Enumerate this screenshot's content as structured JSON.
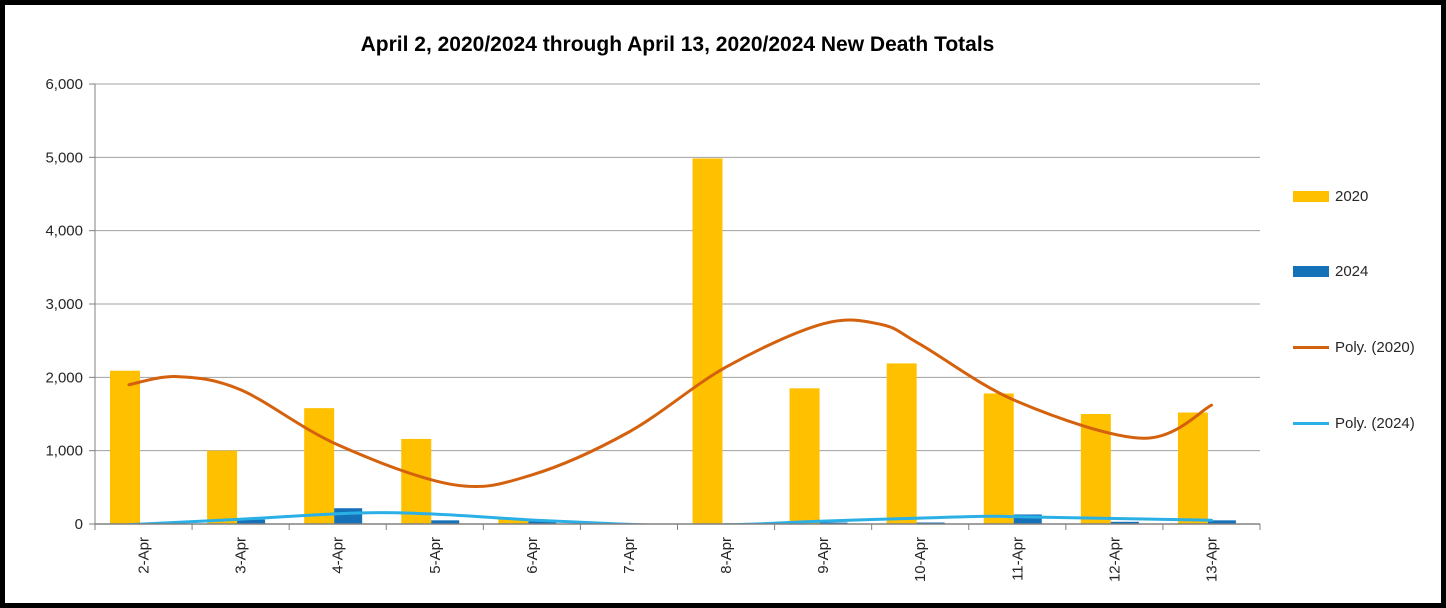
{
  "title": "April 2, 2020/2024 through April 13, 2020/2024 New Death Totals",
  "legend": {
    "items": [
      {
        "label": "2020",
        "type": "bar",
        "color": "#FFC000"
      },
      {
        "label": "2024",
        "type": "bar",
        "color": "#1572B8"
      },
      {
        "label": "Poly. (2020)",
        "type": "line",
        "color": "#D4610D"
      },
      {
        "label": "Poly. (2024)",
        "type": "line",
        "color": "#2BB0E6"
      }
    ]
  },
  "chart_data": {
    "type": "bar",
    "title": "April 2, 2020/2024 through April 13, 2020/2024 New Death Totals",
    "categories": [
      "2-Apr",
      "3-Apr",
      "4-Apr",
      "5-Apr",
      "6-Apr",
      "7-Apr",
      "8-Apr",
      "9-Apr",
      "10-Apr",
      "11-Apr",
      "12-Apr",
      "13-Apr"
    ],
    "series": [
      {
        "name": "2020",
        "color": "#FFC000",
        "values": [
          2090,
          1000,
          1580,
          1160,
          70,
          0,
          4985,
          1850,
          2190,
          1780,
          1500,
          1520
        ]
      },
      {
        "name": "2024",
        "color": "#1572B8",
        "values": [
          5,
          60,
          215,
          50,
          35,
          0,
          10,
          20,
          20,
          130,
          30,
          50
        ]
      }
    ],
    "trendlines": [
      {
        "name": "Poly. (2020)",
        "color": "#D4610D",
        "points": [
          [
            -0.15,
            1900
          ],
          [
            0.35,
            2010
          ],
          [
            1,
            1830
          ],
          [
            2,
            1080
          ],
          [
            3.2,
            535
          ],
          [
            4,
            670
          ],
          [
            5,
            1255
          ],
          [
            6,
            2140
          ],
          [
            7,
            2730
          ],
          [
            7.6,
            2720
          ],
          [
            8,
            2450
          ],
          [
            9,
            1670
          ],
          [
            10.3,
            1170
          ],
          [
            11,
            1620
          ]
        ]
      },
      {
        "name": "Poly. (2024)",
        "color": "#2BB0E6",
        "points": [
          [
            -0.15,
            -10
          ],
          [
            0,
            0
          ],
          [
            1,
            65
          ],
          [
            2.2,
            150
          ],
          [
            3,
            135
          ],
          [
            4,
            55
          ],
          [
            4.9,
            0
          ],
          [
            5.6,
            -25
          ],
          [
            6.3,
            0
          ],
          [
            7,
            40
          ],
          [
            8,
            80
          ],
          [
            8.7,
            105
          ],
          [
            9,
            100
          ],
          [
            10,
            75
          ],
          [
            11,
            50
          ]
        ]
      }
    ],
    "xlabel": "",
    "ylabel": "",
    "ylim": [
      0,
      6000
    ],
    "ytick_step": 1000,
    "ytick_labels": [
      "0",
      "1,000",
      "2,000",
      "3,000",
      "4,000",
      "5,000",
      "6,000"
    ],
    "grid": true,
    "grid_color": "#A0A0A0",
    "axis_color": "#808080",
    "tick_label_color": "#262626",
    "legend_position": "right"
  }
}
